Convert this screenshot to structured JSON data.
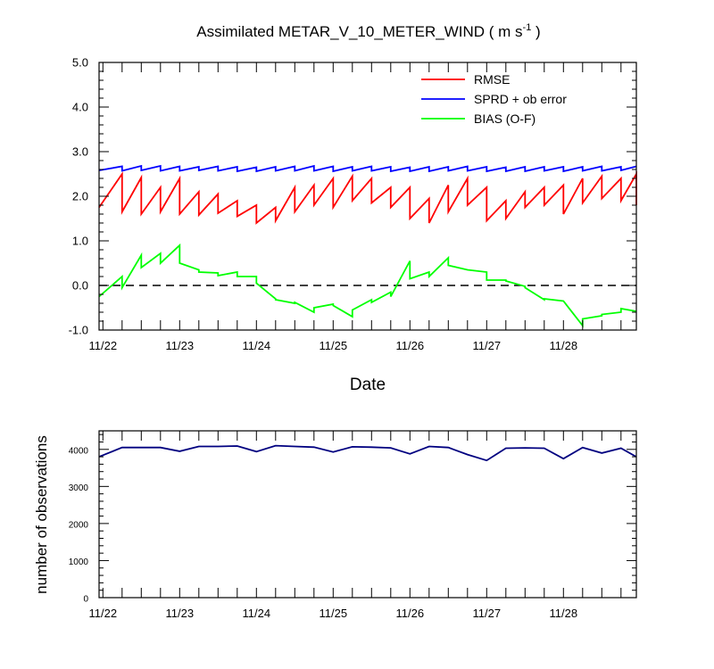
{
  "chart_data": [
    {
      "type": "line",
      "title": "Assimilated METAR_V_10_METER_WIND ( m s",
      "title_superscript": "-1",
      "title_suffix": " )",
      "xlabel": "Date",
      "ylabel": "",
      "x_tick_labels": [
        "11/22",
        "11/23",
        "11/24",
        "11/25",
        "11/26",
        "11/27",
        "11/28"
      ],
      "x_tick_days": [
        1,
        2,
        3,
        4,
        5,
        6,
        7
      ],
      "xlim": [
        0.95,
        7.95
      ],
      "ylim": [
        -1.0,
        5.0
      ],
      "y_tick_values": [
        -1.0,
        0.0,
        1.0,
        2.0,
        3.0,
        4.0,
        5.0
      ],
      "y_tick_labels": [
        "-1.0",
        "0.0",
        "1.0",
        "2.0",
        "3.0",
        "4.0",
        "5.0"
      ],
      "zero_line": "dashed",
      "legend": {
        "placement": "top-right"
      },
      "series": [
        {
          "name": "RMSE",
          "color": "#ff0000",
          "points": [
            [
              0.95,
              1.75
            ],
            [
              1.25,
              2.5
            ],
            [
              1.25,
              1.65
            ],
            [
              1.5,
              2.42
            ],
            [
              1.5,
              1.6
            ],
            [
              1.75,
              2.2
            ],
            [
              1.75,
              1.65
            ],
            [
              2.0,
              2.4
            ],
            [
              2.0,
              1.6
            ],
            [
              2.25,
              2.1
            ],
            [
              2.25,
              1.58
            ],
            [
              2.5,
              2.05
            ],
            [
              2.5,
              1.62
            ],
            [
              2.75,
              1.9
            ],
            [
              2.75,
              1.55
            ],
            [
              3.0,
              1.8
            ],
            [
              3.0,
              1.4
            ],
            [
              3.25,
              1.75
            ],
            [
              3.25,
              1.45
            ],
            [
              3.5,
              2.2
            ],
            [
              3.5,
              1.65
            ],
            [
              3.75,
              2.25
            ],
            [
              3.75,
              1.8
            ],
            [
              4.0,
              2.4
            ],
            [
              4.0,
              1.75
            ],
            [
              4.25,
              2.45
            ],
            [
              4.25,
              1.9
            ],
            [
              4.5,
              2.4
            ],
            [
              4.5,
              1.85
            ],
            [
              4.75,
              2.2
            ],
            [
              4.75,
              1.75
            ],
            [
              5.0,
              2.2
            ],
            [
              5.0,
              1.5
            ],
            [
              5.25,
              1.95
            ],
            [
              5.25,
              1.4
            ],
            [
              5.5,
              2.25
            ],
            [
              5.5,
              1.65
            ],
            [
              5.75,
              2.4
            ],
            [
              5.75,
              1.8
            ],
            [
              6.0,
              2.2
            ],
            [
              6.0,
              1.45
            ],
            [
              6.25,
              1.9
            ],
            [
              6.25,
              1.5
            ],
            [
              6.5,
              2.1
            ],
            [
              6.5,
              1.75
            ],
            [
              6.75,
              2.2
            ],
            [
              6.75,
              1.8
            ],
            [
              7.0,
              2.25
            ],
            [
              7.0,
              1.6
            ],
            [
              7.25,
              2.4
            ],
            [
              7.25,
              1.85
            ],
            [
              7.5,
              2.45
            ],
            [
              7.5,
              1.95
            ],
            [
              7.75,
              2.4
            ],
            [
              7.75,
              1.9
            ],
            [
              7.95,
              2.5
            ],
            [
              7.95,
              1.8
            ]
          ]
        },
        {
          "name": "SPRD + ob error",
          "color": "#0000ff",
          "points": [
            [
              0.95,
              2.58
            ],
            [
              1.25,
              2.67
            ],
            [
              1.25,
              2.57
            ],
            [
              1.5,
              2.68
            ],
            [
              1.5,
              2.58
            ],
            [
              1.75,
              2.68
            ],
            [
              1.75,
              2.57
            ],
            [
              2.0,
              2.67
            ],
            [
              2.0,
              2.57
            ],
            [
              2.25,
              2.66
            ],
            [
              2.25,
              2.58
            ],
            [
              2.5,
              2.67
            ],
            [
              2.5,
              2.57
            ],
            [
              2.75,
              2.66
            ],
            [
              2.75,
              2.56
            ],
            [
              3.0,
              2.65
            ],
            [
              3.0,
              2.56
            ],
            [
              3.25,
              2.66
            ],
            [
              3.25,
              2.57
            ],
            [
              3.5,
              2.67
            ],
            [
              3.5,
              2.57
            ],
            [
              3.75,
              2.68
            ],
            [
              3.75,
              2.57
            ],
            [
              4.0,
              2.67
            ],
            [
              4.0,
              2.56
            ],
            [
              4.25,
              2.66
            ],
            [
              4.25,
              2.57
            ],
            [
              4.5,
              2.67
            ],
            [
              4.5,
              2.57
            ],
            [
              4.75,
              2.66
            ],
            [
              4.75,
              2.56
            ],
            [
              5.0,
              2.65
            ],
            [
              5.0,
              2.56
            ],
            [
              5.25,
              2.66
            ],
            [
              5.25,
              2.56
            ],
            [
              5.5,
              2.66
            ],
            [
              5.5,
              2.57
            ],
            [
              5.75,
              2.67
            ],
            [
              5.75,
              2.57
            ],
            [
              6.0,
              2.66
            ],
            [
              6.0,
              2.56
            ],
            [
              6.25,
              2.65
            ],
            [
              6.25,
              2.56
            ],
            [
              6.5,
              2.66
            ],
            [
              6.5,
              2.56
            ],
            [
              6.75,
              2.66
            ],
            [
              6.75,
              2.57
            ],
            [
              7.0,
              2.66
            ],
            [
              7.0,
              2.56
            ],
            [
              7.25,
              2.66
            ],
            [
              7.25,
              2.57
            ],
            [
              7.5,
              2.67
            ],
            [
              7.5,
              2.57
            ],
            [
              7.75,
              2.66
            ],
            [
              7.75,
              2.58
            ],
            [
              7.95,
              2.67
            ]
          ]
        },
        {
          "name": "BIAS (O-F)",
          "color": "#00ff00",
          "points": [
            [
              0.95,
              -0.25
            ],
            [
              1.25,
              0.2
            ],
            [
              1.25,
              -0.05
            ],
            [
              1.5,
              0.68
            ],
            [
              1.5,
              0.4
            ],
            [
              1.75,
              0.72
            ],
            [
              1.75,
              0.5
            ],
            [
              2.0,
              0.9
            ],
            [
              2.0,
              0.5
            ],
            [
              2.25,
              0.35
            ],
            [
              2.25,
              0.3
            ],
            [
              2.5,
              0.28
            ],
            [
              2.5,
              0.22
            ],
            [
              2.75,
              0.3
            ],
            [
              2.75,
              0.2
            ],
            [
              3.0,
              0.2
            ],
            [
              3.0,
              0.05
            ],
            [
              3.25,
              -0.3
            ],
            [
              3.25,
              -0.32
            ],
            [
              3.5,
              -0.4
            ],
            [
              3.5,
              -0.38
            ],
            [
              3.75,
              -0.6
            ],
            [
              3.75,
              -0.5
            ],
            [
              4.0,
              -0.42
            ],
            [
              4.0,
              -0.45
            ],
            [
              4.25,
              -0.7
            ],
            [
              4.25,
              -0.55
            ],
            [
              4.5,
              -0.32
            ],
            [
              4.5,
              -0.38
            ],
            [
              4.75,
              -0.15
            ],
            [
              4.75,
              -0.25
            ],
            [
              5.0,
              0.55
            ],
            [
              5.0,
              0.15
            ],
            [
              5.25,
              0.3
            ],
            [
              5.25,
              0.2
            ],
            [
              5.5,
              0.62
            ],
            [
              5.5,
              0.45
            ],
            [
              5.75,
              0.35
            ],
            [
              5.75,
              0.35
            ],
            [
              6.0,
              0.3
            ],
            [
              6.0,
              0.12
            ],
            [
              6.25,
              0.12
            ],
            [
              6.25,
              0.1
            ],
            [
              6.5,
              -0.02
            ],
            [
              6.5,
              -0.05
            ],
            [
              6.75,
              -0.32
            ],
            [
              6.75,
              -0.3
            ],
            [
              7.0,
              -0.35
            ],
            [
              7.0,
              -0.35
            ],
            [
              7.25,
              -0.9
            ],
            [
              7.25,
              -0.75
            ],
            [
              7.5,
              -0.68
            ],
            [
              7.5,
              -0.65
            ],
            [
              7.75,
              -0.6
            ],
            [
              7.75,
              -0.52
            ],
            [
              7.95,
              -0.58
            ]
          ]
        }
      ]
    },
    {
      "type": "line",
      "title": "",
      "xlabel": "",
      "ylabel": "number of observations",
      "x_tick_labels": [
        "11/22",
        "11/23",
        "11/24",
        "11/25",
        "11/26",
        "11/27",
        "11/28"
      ],
      "x_tick_days": [
        1,
        2,
        3,
        4,
        5,
        6,
        7
      ],
      "xlim": [
        0.95,
        7.95
      ],
      "ylim": [
        0,
        4500
      ],
      "y_tick_values": [
        0,
        1000,
        2000,
        3000,
        4000
      ],
      "y_tick_labels": [
        "0",
        "1000",
        "2000",
        "3000",
        "4000"
      ],
      "series": [
        {
          "name": "number of observations",
          "color": "#000080",
          "points": [
            [
              0.95,
              3800
            ],
            [
              1.25,
              4050
            ],
            [
              1.5,
              4050
            ],
            [
              1.75,
              4050
            ],
            [
              2.0,
              3950
            ],
            [
              2.25,
              4080
            ],
            [
              2.5,
              4080
            ],
            [
              2.75,
              4090
            ],
            [
              3.0,
              3940
            ],
            [
              3.25,
              4100
            ],
            [
              3.5,
              4080
            ],
            [
              3.75,
              4060
            ],
            [
              4.0,
              3930
            ],
            [
              4.25,
              4070
            ],
            [
              4.5,
              4060
            ],
            [
              4.75,
              4040
            ],
            [
              5.0,
              3880
            ],
            [
              5.25,
              4080
            ],
            [
              5.5,
              4050
            ],
            [
              5.75,
              3860
            ],
            [
              6.0,
              3700
            ],
            [
              6.25,
              4030
            ],
            [
              6.5,
              4040
            ],
            [
              6.75,
              4030
            ],
            [
              7.0,
              3750
            ],
            [
              7.25,
              4050
            ],
            [
              7.5,
              3900
            ],
            [
              7.75,
              4030
            ],
            [
              7.95,
              3800
            ]
          ]
        }
      ]
    }
  ]
}
